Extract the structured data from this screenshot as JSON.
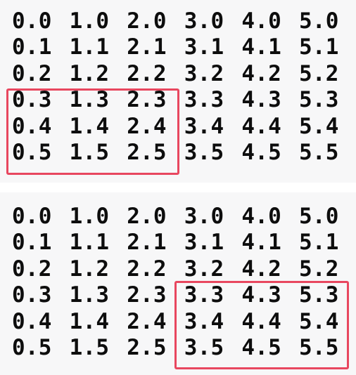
{
  "panels": [
    {
      "rows": [
        [
          "0.0",
          "1.0",
          "2.0",
          "3.0",
          "4.0",
          "5.0"
        ],
        [
          "0.1",
          "1.1",
          "2.1",
          "3.1",
          "4.1",
          "5.1"
        ],
        [
          "0.2",
          "1.2",
          "2.2",
          "3.2",
          "4.2",
          "5.2"
        ],
        [
          "0.3",
          "1.3",
          "2.3",
          "3.3",
          "4.3",
          "5.3"
        ],
        [
          "0.4",
          "1.4",
          "2.4",
          "3.4",
          "4.4",
          "5.4"
        ],
        [
          "0.5",
          "1.5",
          "2.5",
          "3.5",
          "4.5",
          "5.5"
        ]
      ],
      "highlight": {
        "rows": [
          3,
          5
        ],
        "cols": [
          0,
          2
        ]
      }
    },
    {
      "rows": [
        [
          "0.0",
          "1.0",
          "2.0",
          "3.0",
          "4.0",
          "5.0"
        ],
        [
          "0.1",
          "1.1",
          "2.1",
          "3.1",
          "4.1",
          "5.1"
        ],
        [
          "0.2",
          "1.2",
          "2.2",
          "3.2",
          "4.2",
          "5.2"
        ],
        [
          "0.3",
          "1.3",
          "2.3",
          "3.3",
          "4.3",
          "5.3"
        ],
        [
          "0.4",
          "1.4",
          "2.4",
          "3.4",
          "4.4",
          "5.4"
        ],
        [
          "0.5",
          "1.5",
          "2.5",
          "3.5",
          "4.5",
          "5.5"
        ]
      ],
      "highlight": {
        "rows": [
          3,
          5
        ],
        "cols": [
          3,
          5
        ]
      }
    }
  ],
  "colors": {
    "background": "#f7f7f8",
    "text": "#0d0d0d",
    "highlight_border": "#e8475f"
  }
}
